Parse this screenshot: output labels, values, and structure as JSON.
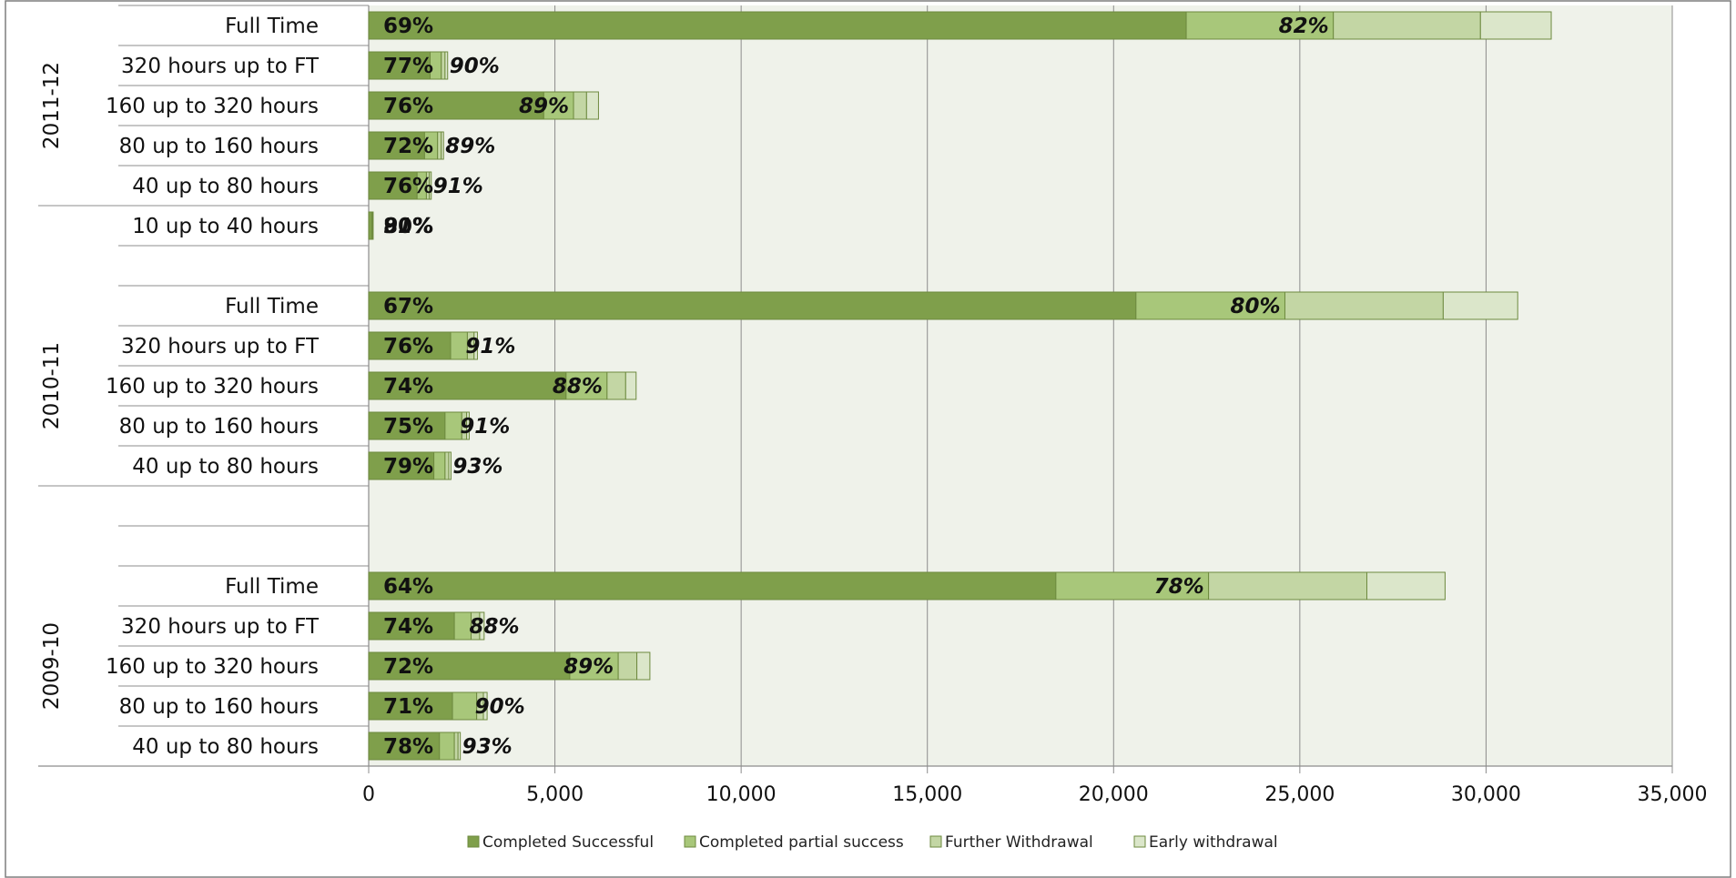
{
  "chart_data": {
    "type": "bar",
    "orientation": "horizontal",
    "stacked": true,
    "xlim": [
      0,
      35000
    ],
    "xticks": [
      0,
      5000,
      10000,
      15000,
      20000,
      25000,
      30000,
      35000
    ],
    "xtick_labels": [
      "0",
      "5,000",
      "10,000",
      "15,000",
      "20,000",
      "25,000",
      "30,000",
      "35,000"
    ],
    "grid": true,
    "legend_position": "bottom",
    "series": [
      {
        "name": "Completed Successful",
        "color": "#7f9f4b"
      },
      {
        "name": "Completed partial success",
        "color": "#a8c77a"
      },
      {
        "name": "Further Withdrawal",
        "color": "#c3d6a4"
      },
      {
        "name": "Early withdrawal",
        "color": "#dbe6ca"
      }
    ],
    "groups": [
      {
        "label": "2011-12",
        "rows": [
          {
            "category": "Full Time",
            "values": [
              21950,
              3950,
              3950,
              1900
            ],
            "success_label": "69%",
            "partial_label": "82%"
          },
          {
            "category": "320 hours up to FT",
            "values": [
              1650,
              300,
              100,
              70
            ],
            "success_label": "77%",
            "partial_label": "90%"
          },
          {
            "category": "160 up to 320 hours",
            "values": [
              4700,
              800,
              350,
              320
            ],
            "success_label": "76%",
            "partial_label": "89%"
          },
          {
            "category": "80 up to 160 hours",
            "values": [
              1500,
              350,
              100,
              60
            ],
            "success_label": "72%",
            "partial_label": "89%"
          },
          {
            "category": "40 up to 80 hours",
            "values": [
              1300,
              250,
              80,
              50
            ],
            "success_label": "76%",
            "partial_label": "91%"
          },
          {
            "category": "10 up to 40 hours",
            "values": [
              90,
              20,
              5,
              5
            ],
            "success_label": "80%",
            "partial_label": "91%"
          }
        ]
      },
      {
        "label": "2010-11",
        "rows": [
          {
            "category": "Full Time",
            "values": [
              20600,
              4000,
              4250,
              2000
            ],
            "success_label": "67%",
            "partial_label": "80%"
          },
          {
            "category": "320 hours up to FT",
            "values": [
              2200,
              450,
              180,
              90
            ],
            "success_label": "76%",
            "partial_label": "91%"
          },
          {
            "category": "160 up to 320 hours",
            "values": [
              5300,
              1100,
              500,
              280
            ],
            "success_label": "74%",
            "partial_label": "88%"
          },
          {
            "category": "80 up to 160 hours",
            "values": [
              2050,
              450,
              130,
              70
            ],
            "success_label": "75%",
            "partial_label": "91%"
          },
          {
            "category": "40 up to 80 hours",
            "values": [
              1750,
              300,
              100,
              60
            ],
            "success_label": "79%",
            "partial_label": "93%"
          }
        ]
      },
      {
        "label": "2009-10",
        "rows": [
          {
            "category": "Full Time",
            "values": [
              18450,
              4100,
              4250,
              2100
            ],
            "success_label": "64%",
            "partial_label": "78%"
          },
          {
            "category": "320 hours up to FT",
            "values": [
              2300,
              450,
              230,
              120
            ],
            "success_label": "74%",
            "partial_label": "88%"
          },
          {
            "category": "160 up to 320 hours",
            "values": [
              5400,
              1300,
              500,
              350
            ],
            "success_label": "72%",
            "partial_label": "89%"
          },
          {
            "category": "80 up to 160 hours",
            "values": [
              2250,
              650,
              180,
              100
            ],
            "success_label": "71%",
            "partial_label": "90%"
          },
          {
            "category": "40 up to 80 hours",
            "values": [
              1900,
              400,
              100,
              60
            ],
            "success_label": "78%",
            "partial_label": "93%"
          }
        ]
      }
    ]
  }
}
